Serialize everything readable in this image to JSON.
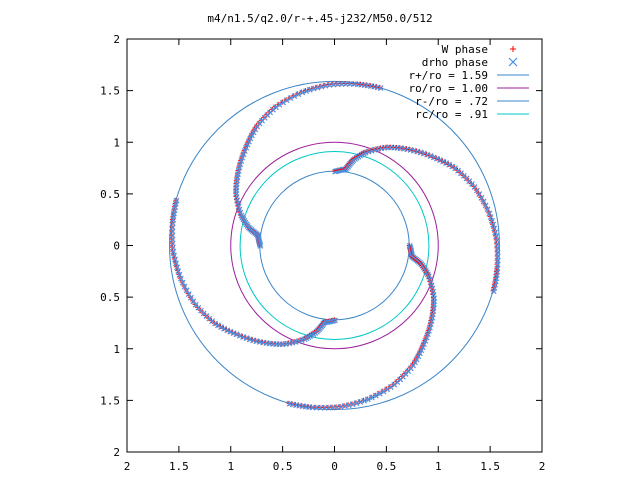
{
  "chart_data": {
    "type": "scatter",
    "title": "m4/n1.5/q2.0/r-+.45-j232/M50.0/512",
    "xlim": [
      -2,
      2
    ],
    "ylim": [
      -2,
      2
    ],
    "x_tick_values": [
      -2,
      -1.5,
      -1,
      -0.5,
      0,
      0.5,
      1,
      1.5,
      2
    ],
    "x_tick_labels": [
      "2",
      "1.5",
      "1",
      "0.5",
      "0",
      "0.5",
      "1",
      "1.5",
      "2"
    ],
    "y_tick_values": [
      2,
      1.5,
      1,
      0.5,
      0,
      -0.5,
      -1,
      -1.5,
      -2
    ],
    "y_tick_labels": [
      "2",
      "1.5",
      "1",
      "0.5",
      "0",
      "0.5",
      "1",
      "1.5",
      "2"
    ],
    "grid": false,
    "legend_position": "top-right",
    "series": [
      {
        "name": "W phase",
        "marker": "plus",
        "color": "#ff0000"
      },
      {
        "name": "drho phase",
        "marker": "cross",
        "color": "#4a90e2"
      }
    ],
    "circles": [
      {
        "name": "r+/ro = 1.59",
        "radius": 1.59,
        "color": "#3a86c8"
      },
      {
        "name": "ro/ro = 1.00",
        "radius": 1.0,
        "color": "#9b1f9b"
      },
      {
        "name": "r-/ro = .72",
        "radius": 0.72,
        "color": "#3a86c8"
      },
      {
        "name": "rc/ro = .91",
        "radius": 0.91,
        "color": "#00c8c8"
      }
    ],
    "spiral_arms": {
      "count": 4,
      "rotation_step_deg": 90,
      "arm_polar_points": [
        [
          0.72,
          90
        ],
        [
          0.75,
          82
        ],
        [
          0.85,
          78
        ],
        [
          0.95,
          72
        ],
        [
          1.08,
          62
        ],
        [
          1.18,
          52
        ],
        [
          1.28,
          42
        ],
        [
          1.38,
          33
        ],
        [
          1.46,
          23
        ],
        [
          1.52,
          12
        ],
        [
          1.56,
          2
        ],
        [
          1.58,
          -8
        ],
        [
          1.59,
          -16
        ]
      ]
    }
  }
}
